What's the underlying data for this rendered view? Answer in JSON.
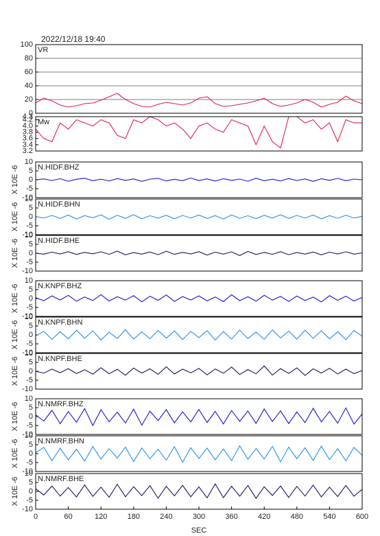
{
  "chart_data": [
    {
      "type": "line",
      "title": "2022/12/18 19:40",
      "label": "VR",
      "x": [
        0,
        15,
        30,
        45,
        60,
        75,
        90,
        105,
        120,
        135,
        150,
        165,
        180,
        195,
        210,
        225,
        240,
        255,
        270,
        285,
        300,
        315,
        330,
        345,
        360,
        375,
        390,
        405,
        420,
        435,
        450,
        465,
        480,
        495,
        510,
        525,
        540,
        555,
        570,
        585,
        600
      ],
      "series": [
        {
          "color": "#e0204a",
          "values": [
            15,
            22,
            18,
            12,
            9,
            11,
            14,
            15,
            19,
            24,
            29,
            20,
            14,
            10,
            9,
            13,
            16,
            14,
            12,
            15,
            22,
            24,
            14,
            10,
            11,
            13,
            15,
            18,
            22,
            14,
            10,
            12,
            15,
            20,
            16,
            9,
            13,
            16,
            25,
            18,
            14
          ]
        }
      ],
      "xlim": [
        0,
        600
      ],
      "ylim": [
        0,
        100
      ],
      "yticks": [
        0,
        20,
        40,
        60,
        80,
        100
      ],
      "grid": true
    },
    {
      "type": "line",
      "label": "Mw",
      "x": [
        0,
        15,
        30,
        45,
        60,
        75,
        90,
        105,
        120,
        135,
        150,
        165,
        180,
        195,
        210,
        225,
        240,
        255,
        270,
        285,
        300,
        315,
        330,
        345,
        360,
        375,
        390,
        405,
        420,
        435,
        450,
        465,
        480,
        495,
        510,
        525,
        540,
        555,
        570,
        585,
        600
      ],
      "series": [
        {
          "color": "#e0204a",
          "values": [
            3.9,
            3.6,
            3.5,
            4.1,
            3.9,
            4.2,
            4.1,
            4.0,
            4.2,
            4.1,
            3.7,
            3.6,
            4.2,
            4.1,
            4.3,
            4.2,
            4.0,
            4.1,
            3.9,
            3.6,
            4.0,
            4.1,
            3.9,
            3.8,
            4.2,
            4.1,
            4.0,
            3.4,
            4.0,
            3.5,
            3.3,
            4.3,
            4.3,
            4.1,
            4.2,
            3.9,
            4.1,
            3.5,
            4.2,
            4.1,
            4.1
          ]
        }
      ],
      "xlim": [
        0,
        600
      ],
      "ylim": [
        3.2,
        4.3
      ],
      "yticks": [
        3.2,
        3.4,
        3.6,
        3.8,
        {
          "value": 4.0,
          "label": "4.0"
        },
        4.2,
        4.3
      ],
      "grid": false
    },
    {
      "type": "line",
      "label": "N.HIDF.BHZ",
      "ylabel": "X 10E -6",
      "x": [
        0,
        15,
        30,
        45,
        60,
        75,
        90,
        105,
        120,
        135,
        150,
        165,
        180,
        195,
        210,
        225,
        240,
        255,
        270,
        285,
        300,
        315,
        330,
        345,
        360,
        375,
        390,
        405,
        420,
        435,
        450,
        465,
        480,
        495,
        510,
        525,
        540,
        555,
        570,
        585,
        600
      ],
      "series": [
        {
          "color": "#1414d2",
          "values": [
            0,
            0.5,
            -0.4,
            0.6,
            -0.8,
            0.3,
            0.9,
            -0.5,
            0.4,
            -0.6,
            0.7,
            -0.3,
            0.5,
            -0.9,
            0.4,
            0.8,
            -0.6,
            0.3,
            -0.5,
            1.0,
            -0.4,
            0.5,
            -0.7,
            0.6,
            -0.3,
            0.4,
            -0.8,
            0.9,
            -0.5,
            0.3,
            -0.6,
            0.7,
            -0.4,
            0.5,
            -0.9,
            0.6,
            -0.3,
            0.8,
            -0.5,
            0.4,
            0
          ]
        }
      ],
      "xlim": [
        0,
        600
      ],
      "ylim": [
        -10,
        10
      ],
      "yticks": [
        -10,
        -5,
        0,
        5,
        10
      ],
      "grid": false
    },
    {
      "type": "line",
      "label": "N.HIDF.BHN",
      "ylabel": "X 10E -6",
      "x": [
        0,
        15,
        30,
        45,
        60,
        75,
        90,
        105,
        120,
        135,
        150,
        165,
        180,
        195,
        210,
        225,
        240,
        255,
        270,
        285,
        300,
        315,
        330,
        345,
        360,
        375,
        390,
        405,
        420,
        435,
        450,
        465,
        480,
        495,
        510,
        525,
        540,
        555,
        570,
        585,
        600
      ],
      "series": [
        {
          "color": "#2090f0",
          "values": [
            0.2,
            -0.6,
            0.8,
            -0.9,
            1.0,
            -1.2,
            0.7,
            -0.5,
            1.1,
            -1.3,
            0.9,
            -0.8,
            1.2,
            -1.0,
            0.6,
            -0.7,
            0.9,
            -1.1,
            0.8,
            -0.6,
            1.0,
            -0.9,
            0.7,
            -1.2,
            1.1,
            -0.8,
            0.6,
            -1.0,
            0.9,
            -0.7,
            1.2,
            -0.9,
            0.8,
            -0.6,
            1.0,
            -1.1,
            0.7,
            -0.8,
            0.9,
            -0.6,
            0.3
          ]
        }
      ],
      "xlim": [
        0,
        600
      ],
      "ylim": [
        -10,
        10
      ],
      "yticks": [
        -10,
        -5,
        0,
        5,
        10
      ],
      "grid": false
    },
    {
      "type": "line",
      "label": "N.HIDF.BHE",
      "ylabel": "X 10E -6",
      "x": [
        0,
        15,
        30,
        45,
        60,
        75,
        90,
        105,
        120,
        135,
        150,
        165,
        180,
        195,
        210,
        225,
        240,
        255,
        270,
        285,
        300,
        315,
        330,
        345,
        360,
        375,
        390,
        405,
        420,
        435,
        450,
        465,
        480,
        495,
        510,
        525,
        540,
        555,
        570,
        585,
        600
      ],
      "series": [
        {
          "color": "#141460",
          "values": [
            0,
            -0.5,
            0.6,
            -0.4,
            0.9,
            -0.7,
            0.5,
            -0.3,
            0.8,
            -0.6,
            1.2,
            -0.9,
            0.4,
            -0.5,
            0.7,
            -0.8,
            1.1,
            -0.6,
            0.5,
            -0.4,
            0.9,
            -1.0,
            0.6,
            -0.5,
            0.8,
            -1.3,
            1.0,
            -0.7,
            0.5,
            -0.6,
            0.9,
            -0.8,
            0.4,
            -0.5,
            0.7,
            -0.9,
            0.6,
            -0.4,
            0.8,
            -0.5,
            0.2
          ]
        }
      ],
      "xlim": [
        0,
        600
      ],
      "ylim": [
        -10,
        10
      ],
      "yticks": [
        -10,
        -5,
        0,
        5,
        10
      ],
      "grid": false
    },
    {
      "type": "line",
      "label": "N.KNPF.BHZ",
      "ylabel": "X 10E -6",
      "x": [
        0,
        15,
        30,
        45,
        60,
        75,
        90,
        105,
        120,
        135,
        150,
        165,
        180,
        195,
        210,
        225,
        240,
        255,
        270,
        285,
        300,
        315,
        330,
        345,
        360,
        375,
        390,
        405,
        420,
        435,
        450,
        465,
        480,
        495,
        510,
        525,
        540,
        555,
        570,
        585,
        600
      ],
      "series": [
        {
          "color": "#1414d2",
          "values": [
            0.5,
            -1.2,
            1.5,
            -0.8,
            1.8,
            -1.5,
            0.9,
            -1.1,
            2.2,
            -1.4,
            1.0,
            -0.9,
            1.6,
            -1.8,
            1.3,
            -1.0,
            2.0,
            -1.6,
            1.1,
            -0.8,
            1.5,
            -1.3,
            0.9,
            -1.7,
            2.1,
            -1.2,
            1.0,
            -1.5,
            1.8,
            -0.9,
            1.2,
            -1.6,
            1.4,
            -1.1,
            0.8,
            -1.9,
            1.6,
            -1.0,
            1.3,
            -1.4,
            0.6
          ]
        }
      ],
      "xlim": [
        0,
        600
      ],
      "ylim": [
        -10,
        10
      ],
      "yticks": [
        -10,
        -5,
        0,
        5,
        10
      ],
      "grid": false
    },
    {
      "type": "line",
      "label": "N.KNPF.BHN",
      "ylabel": "X 10E -6",
      "x": [
        0,
        15,
        30,
        45,
        60,
        75,
        90,
        105,
        120,
        135,
        150,
        165,
        180,
        195,
        210,
        225,
        240,
        255,
        270,
        285,
        300,
        315,
        330,
        345,
        360,
        375,
        390,
        405,
        420,
        435,
        450,
        465,
        480,
        495,
        510,
        525,
        540,
        555,
        570,
        585,
        600
      ],
      "series": [
        {
          "color": "#2090f0",
          "values": [
            -0.5,
            2.0,
            -2.5,
            1.8,
            -2.2,
            2.6,
            -1.9,
            2.3,
            -2.8,
            1.5,
            -2.0,
            2.9,
            -2.4,
            1.7,
            -2.1,
            2.5,
            -1.8,
            2.2,
            -2.6,
            2.0,
            -1.5,
            2.4,
            -2.9,
            1.9,
            -2.3,
            2.7,
            -2.0,
            1.6,
            -2.5,
            2.8,
            -1.7,
            2.1,
            -2.4,
            2.6,
            -1.9,
            2.3,
            -2.2,
            1.8,
            -2.7,
            2.5,
            -0.8
          ]
        }
      ],
      "xlim": [
        0,
        600
      ],
      "ylim": [
        -10,
        10
      ],
      "yticks": [
        -10,
        -5,
        0,
        5,
        10
      ],
      "grid": false
    },
    {
      "type": "line",
      "label": "N.KNPF.BHE",
      "ylabel": "X 10E -6",
      "x": [
        0,
        15,
        30,
        45,
        60,
        75,
        90,
        105,
        120,
        135,
        150,
        165,
        180,
        195,
        210,
        225,
        240,
        255,
        270,
        285,
        300,
        315,
        330,
        345,
        360,
        375,
        390,
        405,
        420,
        435,
        450,
        465,
        480,
        495,
        510,
        525,
        540,
        555,
        570,
        585,
        600
      ],
      "series": [
        {
          "color": "#141460",
          "values": [
            0,
            -1.0,
            1.2,
            -0.8,
            1.5,
            -1.3,
            0.9,
            -1.6,
            2.0,
            -1.4,
            1.1,
            -2.2,
            1.8,
            -1.0,
            1.4,
            -1.7,
            2.5,
            -1.5,
            1.2,
            -0.9,
            1.6,
            -2.0,
            1.3,
            -1.1,
            2.4,
            -1.8,
            1.0,
            -1.4,
            3.0,
            -2.1,
            1.5,
            -1.2,
            1.9,
            -2.3,
            1.4,
            -1.0,
            1.7,
            -1.5,
            1.2,
            -1.3,
            0.4
          ]
        }
      ],
      "xlim": [
        0,
        600
      ],
      "ylim": [
        -10,
        10
      ],
      "yticks": [
        -10,
        -5,
        0,
        5,
        10
      ],
      "grid": false
    },
    {
      "type": "line",
      "label": "N.NMRF.BHZ",
      "ylabel": "X 10E -6",
      "x": [
        0,
        15,
        30,
        45,
        60,
        75,
        90,
        105,
        120,
        135,
        150,
        165,
        180,
        195,
        210,
        225,
        240,
        255,
        270,
        285,
        300,
        315,
        330,
        345,
        360,
        375,
        390,
        405,
        420,
        435,
        450,
        465,
        480,
        495,
        510,
        525,
        540,
        555,
        570,
        585,
        600
      ],
      "series": [
        {
          "color": "#1414d2",
          "values": [
            1.0,
            -2.5,
            3.5,
            -4.0,
            2.8,
            -3.2,
            4.5,
            -5.0,
            3.8,
            -2.9,
            2.5,
            -3.6,
            4.2,
            -4.8,
            3.0,
            -2.2,
            3.9,
            -3.5,
            2.7,
            -3.0,
            4.0,
            -3.3,
            2.9,
            -4.1,
            3.4,
            -2.6,
            3.1,
            -3.8,
            4.3,
            -2.8,
            3.2,
            -3.9,
            2.6,
            -3.4,
            4.6,
            -3.0,
            2.9,
            -3.7,
            4.8,
            -4.2,
            1.5
          ]
        }
      ],
      "xlim": [
        0,
        600
      ],
      "ylim": [
        -10,
        10
      ],
      "yticks": [
        -10,
        -5,
        0,
        5,
        10
      ],
      "grid": false
    },
    {
      "type": "line",
      "label": "N.NMRF.BHN",
      "ylabel": "X 10E -6",
      "x": [
        0,
        15,
        30,
        45,
        60,
        75,
        90,
        105,
        120,
        135,
        150,
        165,
        180,
        195,
        210,
        225,
        240,
        255,
        270,
        285,
        300,
        315,
        330,
        345,
        360,
        375,
        390,
        405,
        420,
        435,
        450,
        465,
        480,
        495,
        510,
        525,
        540,
        555,
        570,
        585,
        600
      ],
      "series": [
        {
          "color": "#2090f0",
          "values": [
            0.5,
            3.5,
            -4.0,
            3.0,
            -3.5,
            2.5,
            -4.2,
            4.0,
            -3.0,
            2.8,
            -2.5,
            3.6,
            -4.5,
            3.2,
            -2.8,
            2.4,
            -3.6,
            3.9,
            -4.8,
            3.3,
            -2.7,
            3.1,
            -3.5,
            2.6,
            -3.9,
            4.4,
            -3.2,
            2.9,
            -3.0,
            4.1,
            -4.6,
            3.7,
            -2.9,
            3.3,
            -3.8,
            4.2,
            -3.4,
            2.8,
            -4.0,
            3.5,
            -1.0
          ]
        }
      ],
      "xlim": [
        0,
        600
      ],
      "ylim": [
        -10,
        10
      ],
      "yticks": [
        -10,
        -5,
        0,
        5,
        10
      ],
      "grid": false
    },
    {
      "type": "line",
      "label": "N.NMRF.BHE",
      "ylabel": "X 10E -6",
      "xlabel": "SEC",
      "x": [
        0,
        15,
        30,
        45,
        60,
        75,
        90,
        105,
        120,
        135,
        150,
        165,
        180,
        195,
        210,
        225,
        240,
        255,
        270,
        285,
        300,
        315,
        330,
        345,
        360,
        375,
        390,
        405,
        420,
        435,
        450,
        465,
        480,
        495,
        510,
        525,
        540,
        555,
        570,
        585,
        600
      ],
      "series": [
        {
          "color": "#141460",
          "values": [
            1.5,
            -2.0,
            3.0,
            -2.6,
            2.2,
            -3.1,
            3.6,
            -2.8,
            2.4,
            -3.3,
            4.0,
            -3.0,
            2.6,
            -2.4,
            3.2,
            -3.8,
            2.8,
            -2.5,
            3.4,
            -3.0,
            2.5,
            -3.6,
            4.2,
            -3.5,
            2.9,
            -2.7,
            3.3,
            -3.9,
            2.6,
            -2.3,
            3.0,
            -3.4,
            2.8,
            -2.6,
            3.5,
            -3.1,
            2.4,
            -2.9,
            3.3,
            -2.7,
            1.2
          ]
        }
      ],
      "xlim": [
        0,
        600
      ],
      "xticks": [
        0,
        60,
        120,
        180,
        240,
        300,
        360,
        420,
        480,
        540,
        600
      ],
      "ylim": [
        -10,
        10
      ],
      "yticks": [
        -10,
        -5,
        0,
        5,
        10
      ],
      "grid": false
    }
  ]
}
